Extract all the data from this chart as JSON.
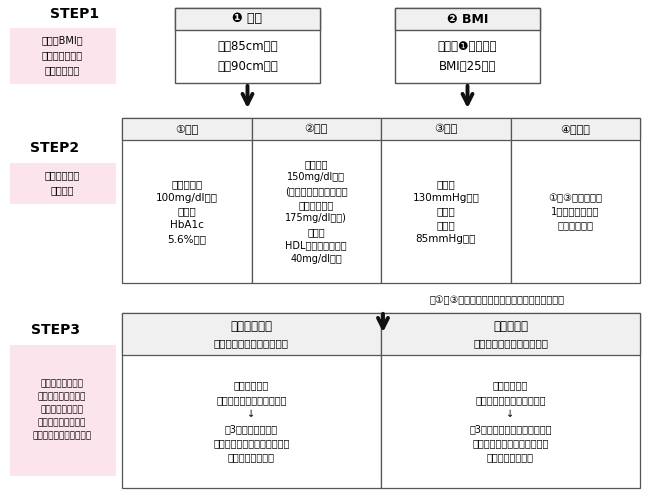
{
  "bg_color": "#ffffff",
  "step1_label": "STEP1",
  "step1_desc": "腹囲とBMIで\n内臓脂肪蓄積の\nリスクを判定",
  "step2_label": "STEP2",
  "step2_desc": "追加リスクを\nカウント",
  "step3_label": "STEP3",
  "step3_desc": "リスク数に応じて\n「動機付け支援」と\n「積極的支援」に\nグループ分けされ、\n保健指導が行われます。",
  "box1_title": "❶ 腹囲",
  "box1_content": "男　85cm以上\n女　90cm以上",
  "box2_title": "❷ BMI",
  "box2_content": "腹囲が❶未満でも\nBMIが25以上",
  "risk1_title": "①血糖",
  "risk1_content": "空腹時血糖\n100mg/dl以上\nまたは\nHbA1c\n5.6%以上",
  "risk2_title": "②脂質",
  "risk2_content": "中性脂肪\n150mg/dl以上\n(やむを得ない場合は、\n随時中性脂肪\n175mg/dl以上)\nまたは\nHDLコレステロール\n40mg/dl未満",
  "risk3_title": "③血圧",
  "risk3_content": "収縮期\n130mmHg以上\nまたは\n拡張期\n85mmHg以上",
  "risk4_title": "④喫煙歴",
  "risk4_content": "①〜③のリスクが\n1つ以上の場合に\nのみカウント",
  "note_text": "＊①〜③に該当しない方は対象者になりません。",
  "support1_title": "動機付け支援",
  "support1_subtitle": "（メタボの兆候がある方）",
  "support1_content": "【初回面接】\n行動目標・行動計画を作成\n↓\n【3ヶ月後の評価】\n生活習慣の改善状況や目標の\n達成状況等の確認",
  "support2_title": "積極的支援",
  "support2_subtitle": "（メタボリスクが高い方）",
  "support2_content": "【初回面接】\n行動目標・行動計画を作成\n↓\n【3ヶ月の継続的支援・評価】\n生活習慣の改善状況や目標の\n達成状況等の確認",
  "pink_bg": "#fce4ec",
  "box_border": "#555555",
  "arrow_color": "#111111",
  "header_bg": "#f0f0f0"
}
